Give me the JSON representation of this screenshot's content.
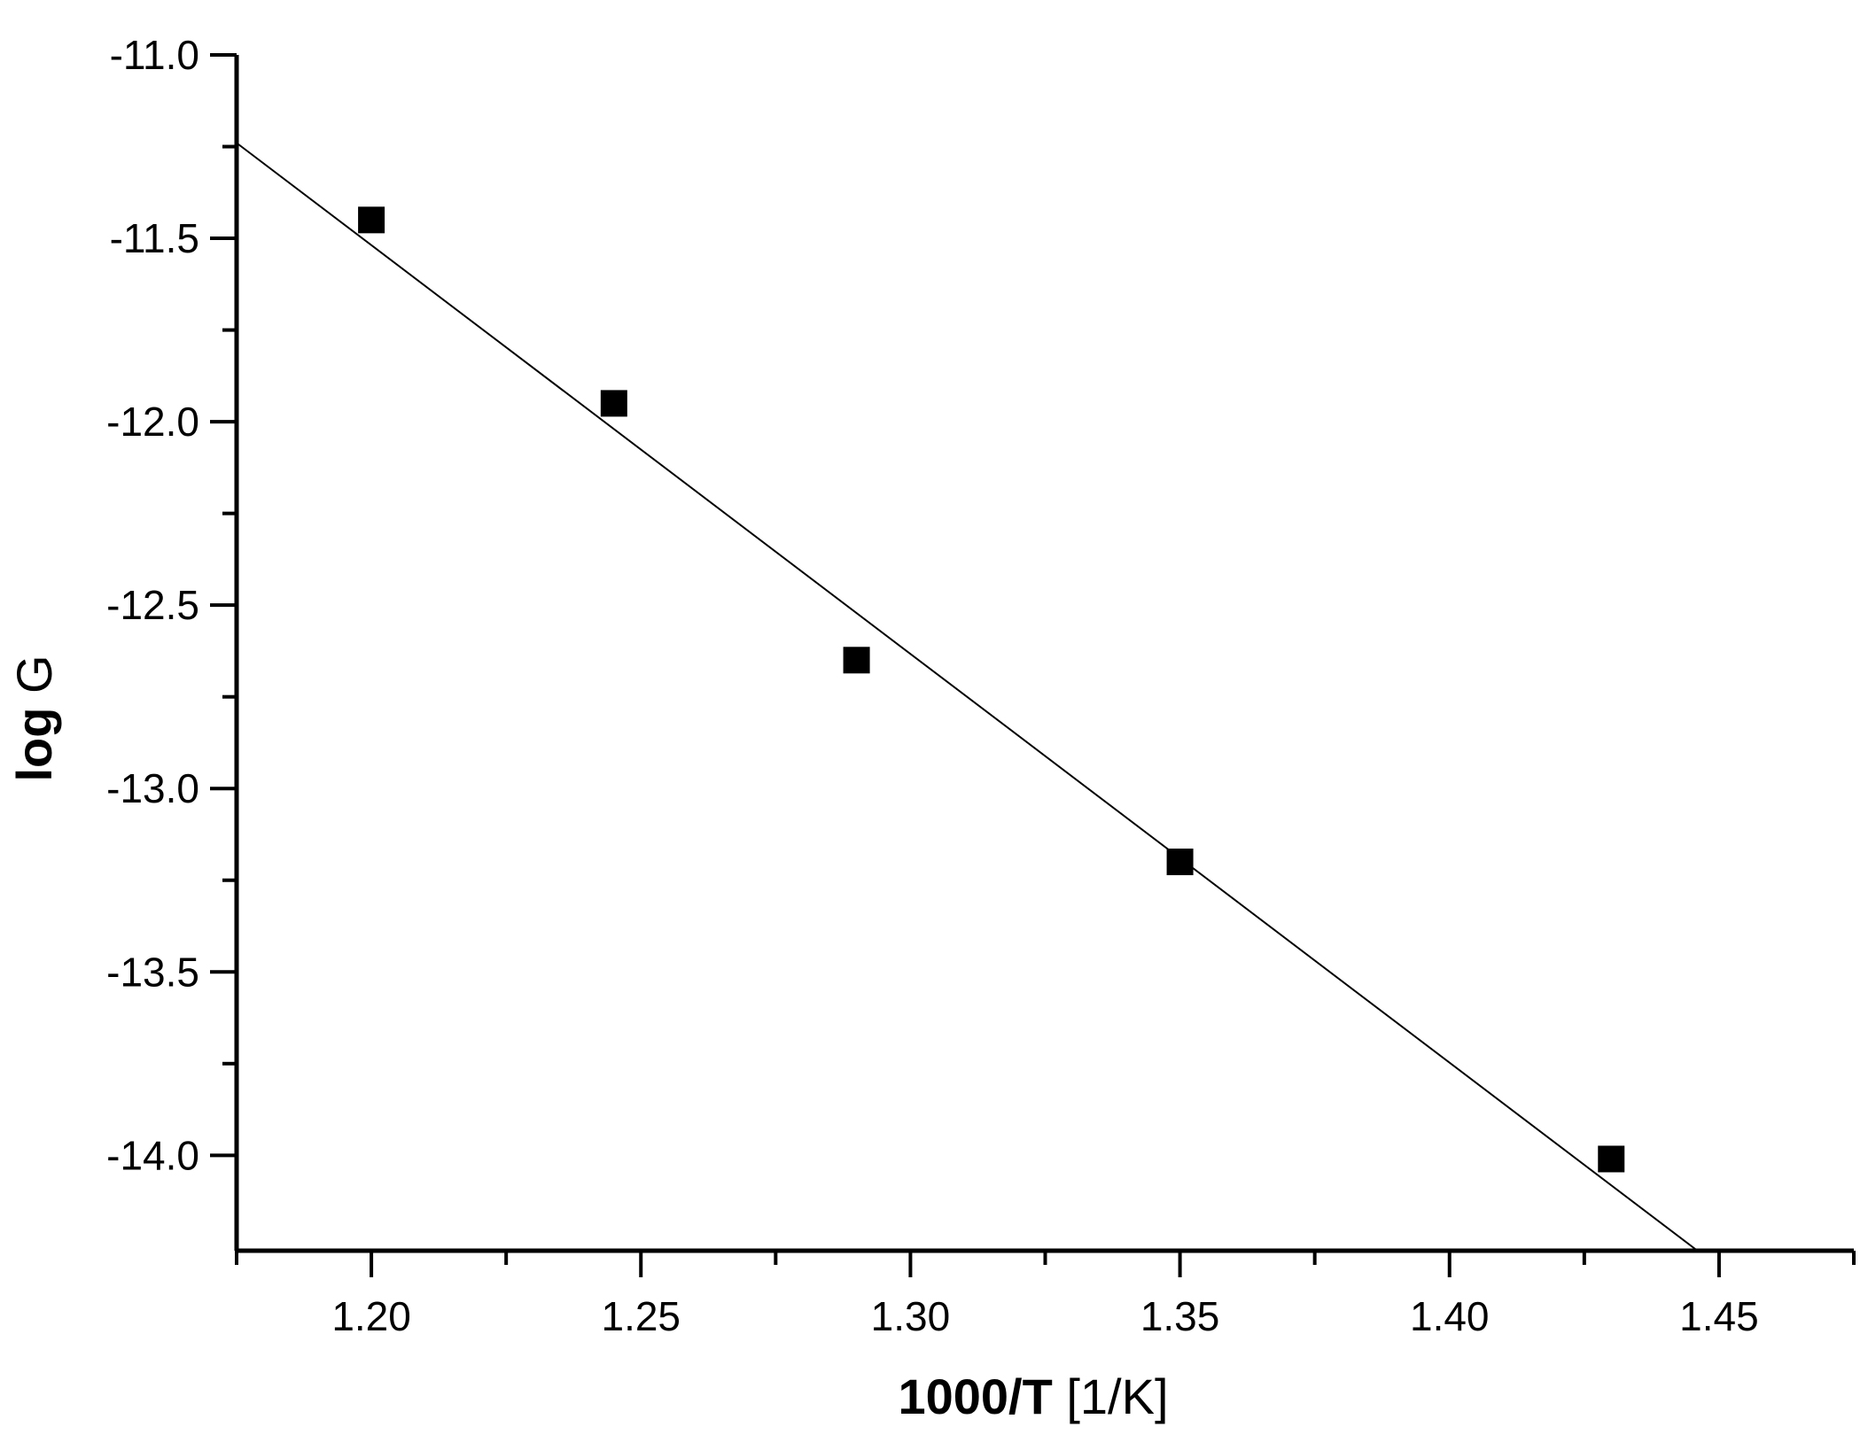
{
  "chart_data": {
    "type": "scatter",
    "title": "",
    "xlabel": {
      "bold": "1000/T",
      "rest": " [1/K]"
    },
    "ylabel": {
      "bold": "log",
      "rest": " G"
    },
    "xlim": [
      1.175,
      1.475
    ],
    "ylim": [
      -14.26,
      -11.0
    ],
    "x_ticks": [
      1.2,
      1.25,
      1.3,
      1.35,
      1.4,
      1.45
    ],
    "x_tick_labels": [
      "1.20",
      "1.25",
      "1.30",
      "1.35",
      "1.40",
      "1.45"
    ],
    "x_minor_ticks": [
      1.175,
      1.225,
      1.275,
      1.325,
      1.375,
      1.425,
      1.475
    ],
    "y_ticks": [
      -11.0,
      -11.5,
      -12.0,
      -12.5,
      -13.0,
      -13.5,
      -14.0
    ],
    "y_tick_labels": [
      "-11.0",
      "-11.5",
      "-12.0",
      "-12.5",
      "-13.0",
      "-13.5",
      "-14.0"
    ],
    "y_minor_ticks": [
      -11.25,
      -11.75,
      -12.25,
      -12.75,
      -13.25,
      -13.75
    ],
    "grid": false,
    "series": [
      {
        "marker": "square",
        "color": "#000000",
        "points": [
          {
            "x": 1.2,
            "y": -11.45
          },
          {
            "x": 1.245,
            "y": -11.95
          },
          {
            "x": 1.29,
            "y": -12.65
          },
          {
            "x": 1.35,
            "y": -13.2
          },
          {
            "x": 1.43,
            "y": -14.01
          }
        ]
      },
      {
        "line": "linear-fit",
        "color": "#000000",
        "points": [
          {
            "x": 1.175,
            "y": -11.24
          },
          {
            "x": 1.446,
            "y": -14.26
          }
        ]
      }
    ]
  }
}
